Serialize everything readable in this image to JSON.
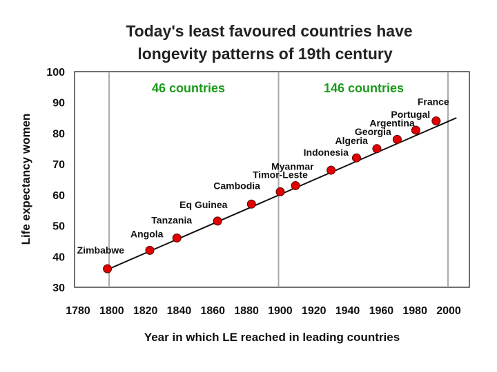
{
  "chart_data": {
    "type": "scatter",
    "title_lines": [
      "Today's least favoured countries have",
      "longevity patterns of 19th century"
    ],
    "xlabel": "Year in which LE reached in leading countries",
    "ylabel": "Life expectancy women",
    "xlim": [
      1780,
      2010
    ],
    "ylim": [
      30,
      100
    ],
    "x_ticks": [
      "1780",
      "1800",
      "1820",
      "1840",
      "1860",
      "1880",
      "1900",
      "1920",
      "1940",
      "1960",
      "1980",
      "2000"
    ],
    "y_ticks": [
      "30",
      "40",
      "50",
      "60",
      "70",
      "80",
      "90",
      "100"
    ],
    "vertical_reference_lines": [
      1800,
      1900,
      2000
    ],
    "trend_line": {
      "x": [
        1798,
        2005
      ],
      "y": [
        35.5,
        85
      ]
    },
    "groups": [
      {
        "label": "46 countries",
        "color": "#1a9a1a"
      },
      {
        "label": "146 countries",
        "color": "#1a9a1a"
      }
    ],
    "series": [
      {
        "name": "Countries",
        "color": "#e00000",
        "points": [
          {
            "label": "Zimbabwe",
            "x": 1799,
            "y": 36
          },
          {
            "label": "Angola",
            "x": 1824,
            "y": 42
          },
          {
            "label": "Tanzania",
            "x": 1840,
            "y": 46
          },
          {
            "label": "Eq Guinea",
            "x": 1864,
            "y": 51.5
          },
          {
            "label": "Cambodia",
            "x": 1884,
            "y": 57
          },
          {
            "label": "Timor-Leste",
            "x": 1901,
            "y": 61
          },
          {
            "label": "Myanmar",
            "x": 1910,
            "y": 63
          },
          {
            "label": "Indonesia",
            "x": 1931,
            "y": 68
          },
          {
            "label": "Algeria",
            "x": 1946,
            "y": 72
          },
          {
            "label": "Georgia",
            "x": 1958,
            "y": 75
          },
          {
            "label": "Argentina",
            "x": 1970,
            "y": 78
          },
          {
            "label": "Portugal",
            "x": 1981,
            "y": 81
          },
          {
            "label": "France",
            "x": 1993,
            "y": 84
          }
        ]
      }
    ]
  }
}
